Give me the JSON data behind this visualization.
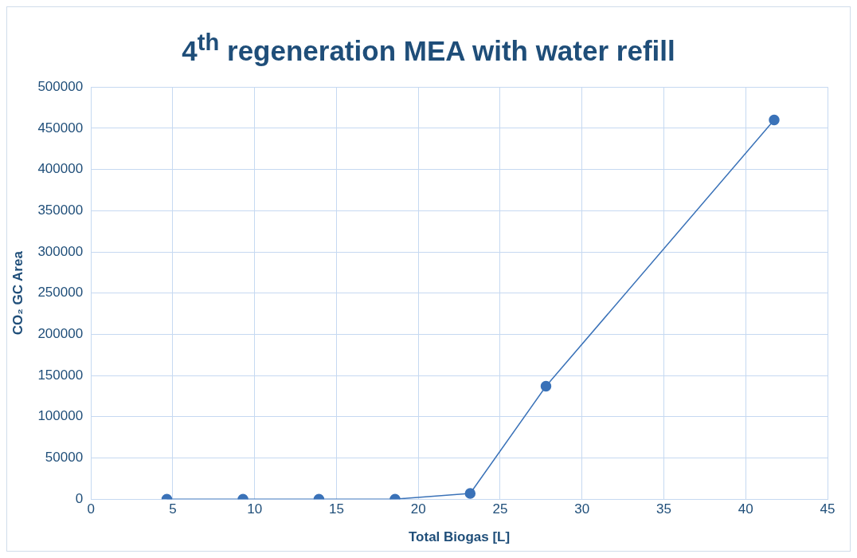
{
  "chart_data": {
    "type": "line",
    "title": "4$^{th}$ regeneration MEA with water refill",
    "xlabel": "Total Biogas [L]",
    "ylabel": "CO₂ GC Area",
    "x": [
      4.64,
      9.29,
      13.93,
      18.58,
      23.17,
      27.8,
      41.74
    ],
    "series": [
      {
        "color": "#3a72b8",
        "values": [
          0,
          0,
          0,
          0,
          7000,
          137000,
          460000
        ]
      }
    ],
    "xlim": [
      0,
      45
    ],
    "xticks": [
      0,
      5,
      10,
      15,
      20,
      25,
      30,
      35,
      40,
      45
    ],
    "ylim": [
      0,
      500000
    ],
    "yticks": [
      0,
      50000,
      100000,
      150000,
      200000,
      250000,
      300000,
      350000,
      400000,
      450000,
      500000
    ],
    "grid": true,
    "legend": false,
    "marker": "circle",
    "line_style": "solid"
  }
}
